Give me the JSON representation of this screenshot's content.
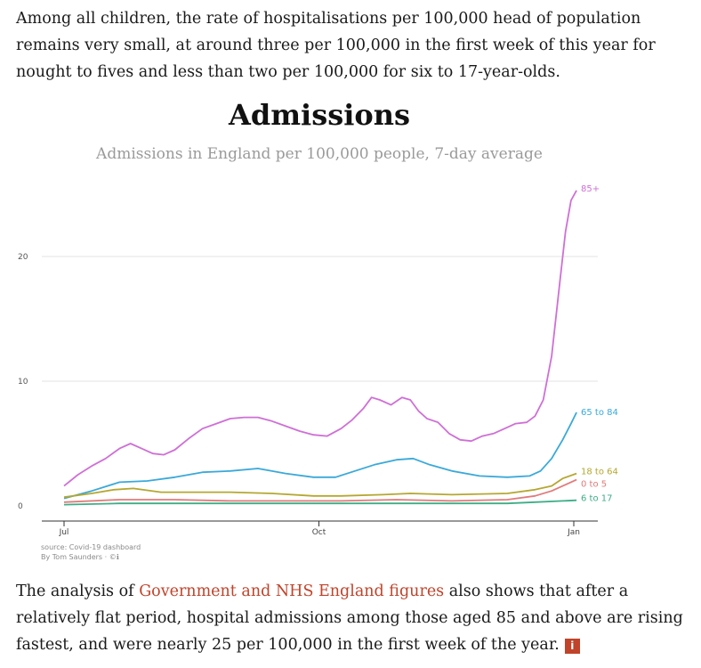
{
  "intro_paragraph": "Among all children, the rate of hospitalisations per 100,000 head of population remains very small, at around three per 100,000 in the first week of this year for nought to fives and less than two per 100,000 for six to 17-year-olds.",
  "outro": {
    "before": "The analysis of ",
    "link": "Government and NHS England figures",
    "after": " also shows that after a relatively flat period, hospital admissions among those aged 85 and above are rising fastest, and were nearly 25 per 100,000 in the first week of the year.",
    "info_glyph": "i"
  },
  "chart_data": {
    "type": "line",
    "title": "Admissions",
    "subtitle": "Admissions in England per 100,000 people, 7-day average",
    "x_ticks": [
      {
        "label": "Jul",
        "day": 0
      },
      {
        "label": "Oct",
        "day": 92
      },
      {
        "label": "Jan",
        "day": 184
      }
    ],
    "x_range_days": [
      0,
      186
    ],
    "y_ticks": [
      0,
      10,
      20
    ],
    "ylim": [
      0,
      25.5
    ],
    "grid": true,
    "source": "source: Covid-19 dashboard",
    "author": "By Tom Saunders",
    "author_glyphs": "· ©ℹ",
    "series": [
      {
        "name": "85+",
        "color": "#cf6fd6",
        "points": [
          [
            0,
            1.6
          ],
          [
            5,
            2.5
          ],
          [
            10,
            3.2
          ],
          [
            15,
            3.8
          ],
          [
            20,
            4.6
          ],
          [
            24,
            5.0
          ],
          [
            28,
            4.6
          ],
          [
            32,
            4.2
          ],
          [
            36,
            4.1
          ],
          [
            40,
            4.5
          ],
          [
            45,
            5.4
          ],
          [
            50,
            6.2
          ],
          [
            55,
            6.6
          ],
          [
            60,
            7.0
          ],
          [
            65,
            7.1
          ],
          [
            70,
            7.1
          ],
          [
            75,
            6.8
          ],
          [
            80,
            6.4
          ],
          [
            85,
            6.0
          ],
          [
            90,
            5.7
          ],
          [
            95,
            5.6
          ],
          [
            100,
            6.2
          ],
          [
            104,
            6.9
          ],
          [
            108,
            7.8
          ],
          [
            111,
            8.7
          ],
          [
            114,
            8.5
          ],
          [
            118,
            8.1
          ],
          [
            122,
            8.7
          ],
          [
            125,
            8.5
          ],
          [
            128,
            7.6
          ],
          [
            131,
            7.0
          ],
          [
            135,
            6.7
          ],
          [
            139,
            5.8
          ],
          [
            143,
            5.3
          ],
          [
            147,
            5.2
          ],
          [
            151,
            5.6
          ],
          [
            155,
            5.8
          ],
          [
            160,
            6.3
          ],
          [
            163,
            6.6
          ],
          [
            167,
            6.7
          ],
          [
            170,
            7.2
          ],
          [
            173,
            8.5
          ],
          [
            176,
            12.0
          ],
          [
            179,
            18.0
          ],
          [
            181,
            22.0
          ],
          [
            183,
            24.5
          ],
          [
            185,
            25.3
          ]
        ]
      },
      {
        "name": "65 to 84",
        "color": "#3aa9d9",
        "points": [
          [
            0,
            0.6
          ],
          [
            10,
            1.2
          ],
          [
            20,
            1.9
          ],
          [
            30,
            2.0
          ],
          [
            40,
            2.3
          ],
          [
            50,
            2.7
          ],
          [
            60,
            2.8
          ],
          [
            70,
            3.0
          ],
          [
            80,
            2.6
          ],
          [
            90,
            2.3
          ],
          [
            98,
            2.3
          ],
          [
            105,
            2.8
          ],
          [
            112,
            3.3
          ],
          [
            120,
            3.7
          ],
          [
            126,
            3.8
          ],
          [
            132,
            3.3
          ],
          [
            140,
            2.8
          ],
          [
            150,
            2.4
          ],
          [
            160,
            2.3
          ],
          [
            168,
            2.4
          ],
          [
            172,
            2.8
          ],
          [
            176,
            3.8
          ],
          [
            180,
            5.3
          ],
          [
            183,
            6.6
          ],
          [
            185,
            7.5
          ]
        ]
      },
      {
        "name": "18 to 64",
        "color": "#b5a730",
        "points": [
          [
            0,
            0.7
          ],
          [
            10,
            1.0
          ],
          [
            18,
            1.3
          ],
          [
            25,
            1.4
          ],
          [
            35,
            1.1
          ],
          [
            50,
            1.1
          ],
          [
            60,
            1.1
          ],
          [
            75,
            1.0
          ],
          [
            90,
            0.8
          ],
          [
            100,
            0.8
          ],
          [
            115,
            0.9
          ],
          [
            125,
            1.0
          ],
          [
            140,
            0.9
          ],
          [
            160,
            1.0
          ],
          [
            170,
            1.3
          ],
          [
            176,
            1.6
          ],
          [
            180,
            2.2
          ],
          [
            185,
            2.6
          ]
        ]
      },
      {
        "name": "0 to 5",
        "color": "#e07b7b",
        "points": [
          [
            0,
            0.3
          ],
          [
            20,
            0.5
          ],
          [
            40,
            0.5
          ],
          [
            60,
            0.4
          ],
          [
            80,
            0.4
          ],
          [
            100,
            0.4
          ],
          [
            120,
            0.5
          ],
          [
            140,
            0.4
          ],
          [
            160,
            0.5
          ],
          [
            170,
            0.8
          ],
          [
            176,
            1.2
          ],
          [
            181,
            1.7
          ],
          [
            185,
            2.1
          ]
        ]
      },
      {
        "name": "6 to 17",
        "color": "#3dae87",
        "points": [
          [
            0,
            0.1
          ],
          [
            20,
            0.2
          ],
          [
            40,
            0.2
          ],
          [
            60,
            0.2
          ],
          [
            80,
            0.2
          ],
          [
            100,
            0.2
          ],
          [
            120,
            0.2
          ],
          [
            140,
            0.2
          ],
          [
            160,
            0.2
          ],
          [
            170,
            0.3
          ],
          [
            180,
            0.4
          ],
          [
            185,
            0.45
          ]
        ]
      }
    ]
  }
}
